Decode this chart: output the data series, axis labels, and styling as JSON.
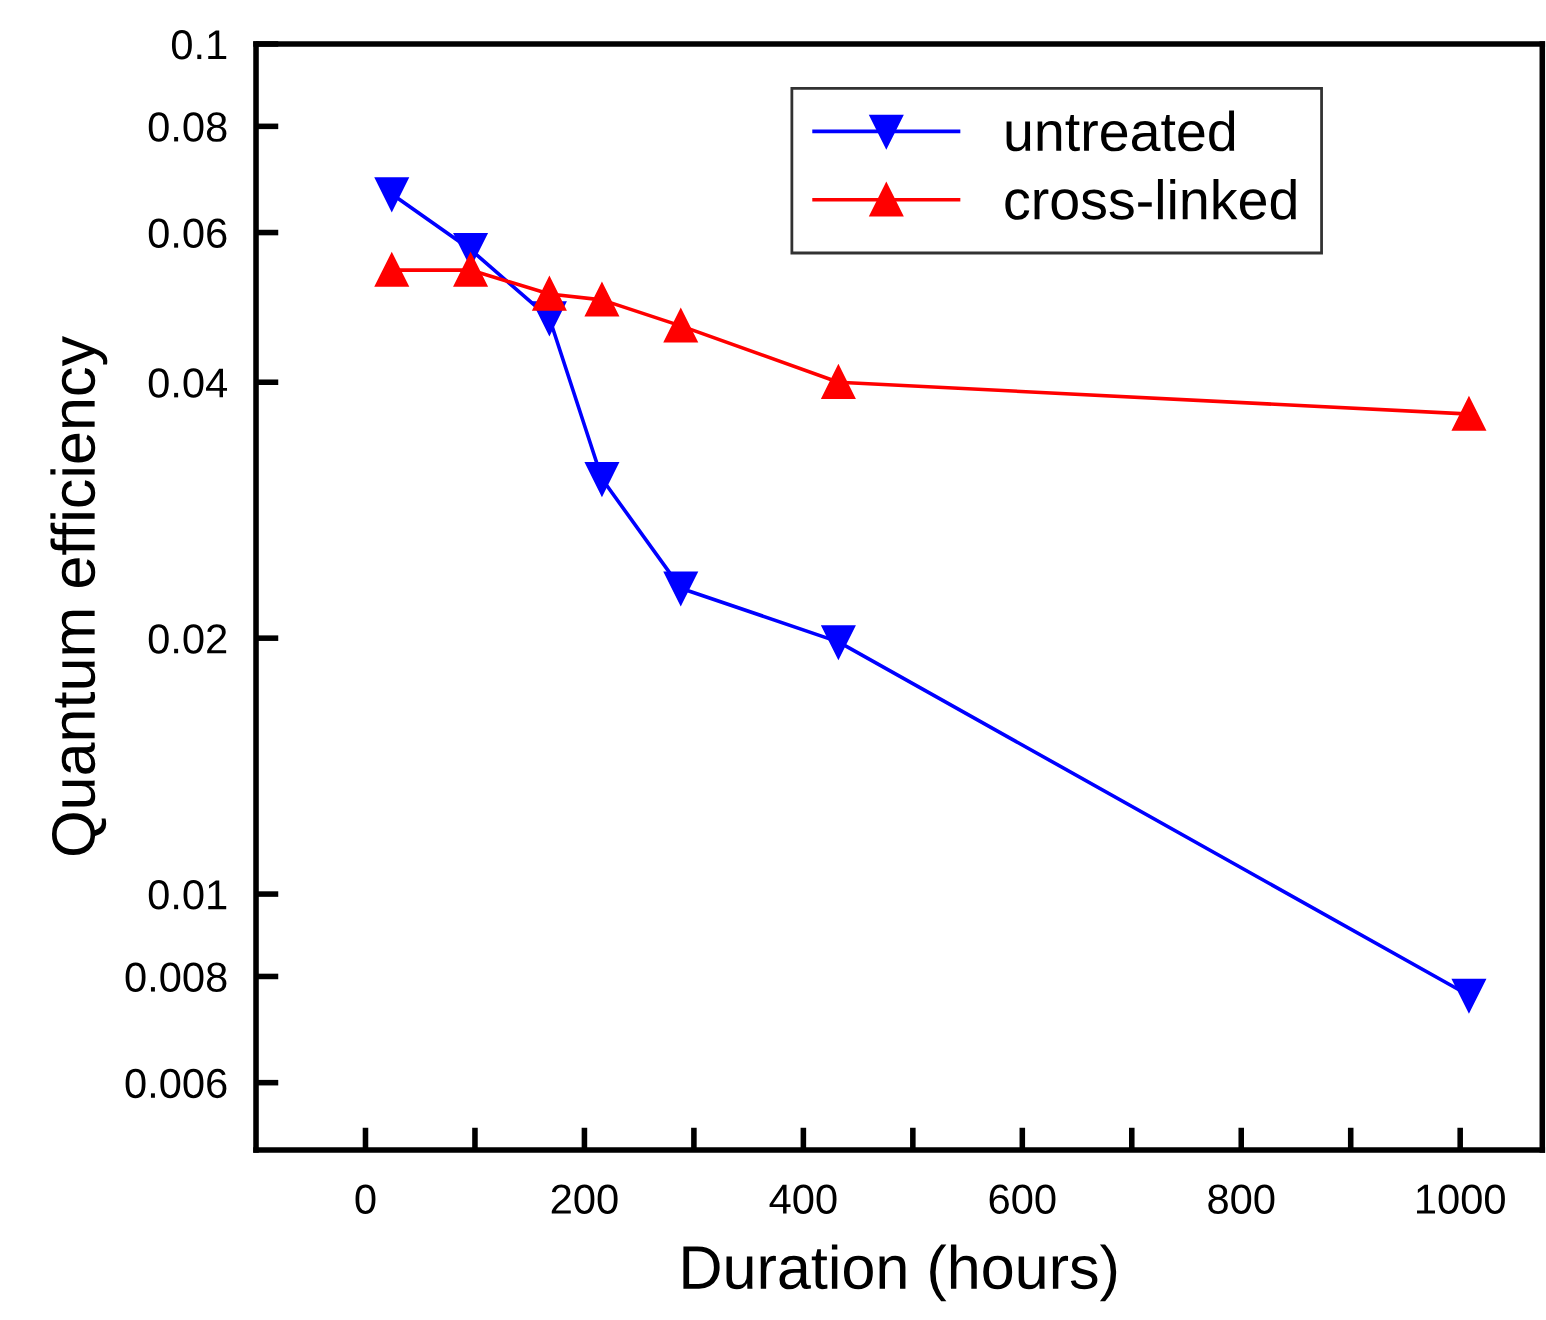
{
  "chart_data": {
    "type": "line",
    "xlabel": "Duration (hours)",
    "ylabel": "Quantum efficiency",
    "x": [
      24,
      96,
      168,
      216,
      288,
      432,
      1008
    ],
    "series": [
      {
        "name": "untreated",
        "color": "#0000ff",
        "marker": "triangle_down",
        "values": [
          0.0666,
          0.0573,
          0.0476,
          0.0308,
          0.0229,
          0.0198,
          0.0076
        ]
      },
      {
        "name": "cross-linked",
        "color": "#ff0000",
        "marker": "triangle",
        "values": [
          0.0542,
          0.0542,
          0.0508,
          0.05,
          0.0466,
          0.04,
          0.0367
        ]
      }
    ],
    "log": "y",
    "xlim": [
      -100,
      1075
    ],
    "ylim": [
      0.005,
      0.1
    ],
    "xticks": [
      0,
      {
        "value": 100,
        "label": null
      },
      200,
      {
        "value": 300,
        "label": null
      },
      400,
      {
        "value": 500,
        "label": null
      },
      600,
      {
        "value": 700,
        "label": null
      },
      800,
      {
        "value": 900,
        "label": null
      },
      1000
    ],
    "yticks": [
      0.006,
      0.008,
      0.01,
      0.02,
      0.04,
      0.06,
      0.08,
      0.1
    ],
    "grid": false,
    "legend": "top right",
    "line_style": "solid"
  }
}
